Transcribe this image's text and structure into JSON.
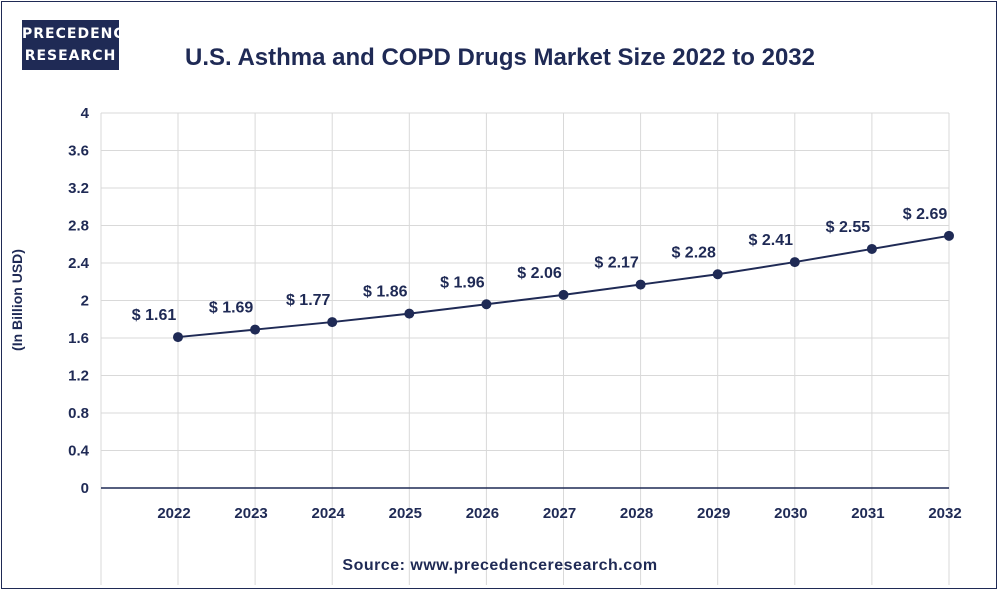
{
  "brand": {
    "line1": "PRECEDENCE",
    "line2": "RESEARCH"
  },
  "colors": {
    "primary": "#1f2a55",
    "grid": "#d9d9d9"
  },
  "chart_data": {
    "type": "line",
    "title": "U.S. Asthma and COPD Drugs Market Size 2022 to 2032",
    "ylabel": "(In Billion USD)",
    "xlabel": "",
    "categories": [
      "2022",
      "2023",
      "2024",
      "2025",
      "2026",
      "2027",
      "2028",
      "2029",
      "2030",
      "2031",
      "2032"
    ],
    "values": [
      1.61,
      1.69,
      1.77,
      1.86,
      1.96,
      2.06,
      2.17,
      2.28,
      2.41,
      2.55,
      2.69
    ],
    "data_labels": [
      "$ 1.61",
      "$ 1.69",
      "$ 1.77",
      "$ 1.86",
      "$ 1.96",
      "$ 2.06",
      "$ 2.17",
      "$ 2.28",
      "$ 2.41",
      "$ 2.55",
      "$ 2.69"
    ],
    "ylim": [
      0,
      4
    ],
    "yticks": [
      "0",
      "0.4",
      "0.8",
      "1.2",
      "1.6",
      "2",
      "2.4",
      "2.8",
      "3.2",
      "3.6",
      "4"
    ],
    "grid": true
  },
  "source": "Source: www.precedenceresearch.com"
}
